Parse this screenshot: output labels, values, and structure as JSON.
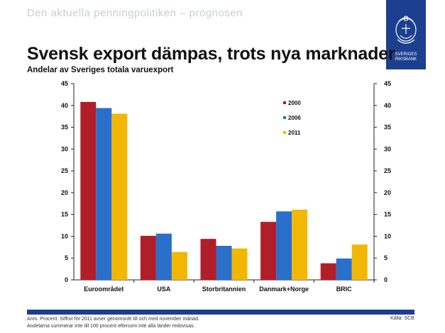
{
  "slide": {
    "header": "Den aktuella penningpolitiken – prognosen",
    "logo_text": "SVERIGES RIKSBANK",
    "footer_note_line1": "Anm. Procent. Siffror för 2011 avser genomsnitt till och med november månad.",
    "footer_note_line2": "Andelarna summerar inte till 100 procent eftersom inte alla länder redovisas.",
    "source": "Källa: SCB"
  },
  "chart_data": {
    "type": "bar",
    "title": "Svensk export dämpas, trots nya marknader",
    "subtitle": "Andelar av Sveriges totala varuexport",
    "categories": [
      "Euroområdet",
      "USA",
      "Storbritannien",
      "Danmark+Norge",
      "BRIC"
    ],
    "series": [
      {
        "name": "2000",
        "color": "#b01e2a",
        "values": [
          40.8,
          10.1,
          9.4,
          13.3,
          3.8
        ]
      },
      {
        "name": "2006",
        "color": "#2a6fc9",
        "values": [
          39.4,
          10.6,
          7.8,
          15.7,
          4.9
        ]
      },
      {
        "name": "2011",
        "color": "#f2b705",
        "values": [
          38.1,
          6.4,
          7.2,
          16.1,
          8.1
        ]
      }
    ],
    "ylim": [
      0,
      45
    ],
    "yticks": [
      "0",
      "5",
      "10",
      "15",
      "20",
      "25",
      "30",
      "35",
      "40",
      "45"
    ],
    "grid": false,
    "dual_y_axis": true,
    "legend_position": "top-right"
  }
}
